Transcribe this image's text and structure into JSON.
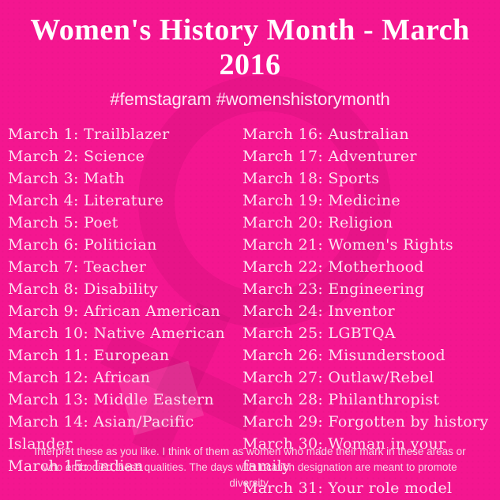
{
  "title": "Women's History Month - March 2016",
  "hashtags": "#femstagram #womenshistorymonth",
  "days": {
    "left": [
      "March 1: Trailblazer",
      "March 2: Science",
      "March 3: Math",
      "March 4: Literature",
      "March 5: Poet",
      "March 6: Politician",
      "March 7: Teacher",
      "March 8: Disability",
      "March 9: African American",
      "March 10: Native American",
      "March 11: European",
      "March 12: African",
      "March 13: Middle Eastern",
      "March 14: Asian/Pacific Islander",
      "March 15: Indian"
    ],
    "right": [
      "March 16: Australian",
      "March 17: Adventurer",
      "March 18: Sports",
      "March 19: Medicine",
      "March 20: Religion",
      "March 21: Women's Rights",
      "March 22: Motherhood",
      "March 23: Engineering",
      "March 24: Inventor",
      "March 25: LGBTQA",
      "March 26: Misunderstood",
      "March 27: Outlaw/Rebel",
      "March 28: Philanthropist",
      "March 29: Forgotten by history",
      "March 30: Woman in your family",
      "March 31: Your role model"
    ]
  },
  "footer": "Interpret these as you like. I think of them as women who made their mark in these areas or who embodied these qualities. The days with location designation are meant to promote diversity.",
  "icons": {
    "watermark": "venus-female-symbol"
  },
  "colors": {
    "background": "#f41690",
    "title_text": "#ffffff",
    "hashtag_text": "#ffeaf6",
    "list_text": "#fce4f2",
    "footer_text": "#f7d7e9",
    "watermark_tint": "rgba(0,0,0,0.05)"
  }
}
